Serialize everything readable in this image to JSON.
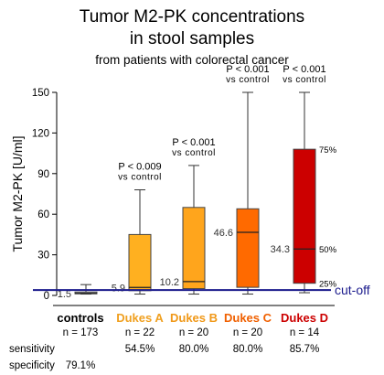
{
  "titles": {
    "line1": "Tumor M2-PK concentrations",
    "line2": "in stool samples",
    "line3": "from patients with colorectal cancer"
  },
  "chart_data": {
    "type": "box",
    "ylabel": "Tumor M2-PK   [U/ml]",
    "ylim": [
      0,
      150
    ],
    "yticks": [
      0,
      30,
      60,
      90,
      120,
      150
    ],
    "cutoff": {
      "value": 4,
      "label": "cut-off",
      "color": "#1a1a8c"
    },
    "series": [
      {
        "name": "controls",
        "n": "n = 173",
        "color": "#c9c9c9",
        "label_color": "#000000",
        "whisker_low": 1,
        "q1": 1.2,
        "median": 1.5,
        "q3": 2.5,
        "whisker_high": 8,
        "median_label": "1.5",
        "annotation": [],
        "sensitivity": "",
        "specificity": "79.1%"
      },
      {
        "name": "Dukes A",
        "n": "n = 22",
        "color": "#ffb020",
        "label_color": "#f0a020",
        "whisker_low": 1,
        "q1": 3.5,
        "median": 5.9,
        "q3": 45,
        "whisker_high": 78,
        "median_label": "5.9",
        "annotation": [
          "P < 0.009",
          "vs control"
        ],
        "sensitivity": "54.5%",
        "specificity": ""
      },
      {
        "name": "Dukes B",
        "n": "n = 20",
        "color": "#ffa51c",
        "label_color": "#f09818",
        "whisker_low": 1,
        "q1": 5,
        "median": 10.2,
        "q3": 65,
        "whisker_high": 96,
        "median_label": "10.2",
        "annotation": [
          "P < 0.001",
          "vs control"
        ],
        "sensitivity": "80.0%",
        "specificity": ""
      },
      {
        "name": "Dukes C",
        "n": "n = 20",
        "color": "#ff6a00",
        "label_color": "#f06000",
        "whisker_low": 1,
        "q1": 6,
        "median": 46.6,
        "q3": 64,
        "whisker_high": 150,
        "median_label": "46.6",
        "annotation": [
          "P < 0.001",
          "vs control"
        ],
        "sensitivity": "80.0%",
        "specificity": ""
      },
      {
        "name": "Dukes D",
        "n": "n = 14",
        "color": "#cc0000",
        "label_color": "#cc0000",
        "whisker_low": 2,
        "q1": 9,
        "median": 34.3,
        "q3": 108,
        "whisker_high": 150,
        "median_label": "34.3",
        "annotation": [
          "P < 0.001",
          "vs control"
        ],
        "sensitivity": "85.7%",
        "specificity": ""
      }
    ],
    "percentile_labels": [
      "75%",
      "50%",
      "25%"
    ],
    "row_labels": {
      "sensitivity": "sensitivity",
      "specificity": "specificity"
    }
  }
}
